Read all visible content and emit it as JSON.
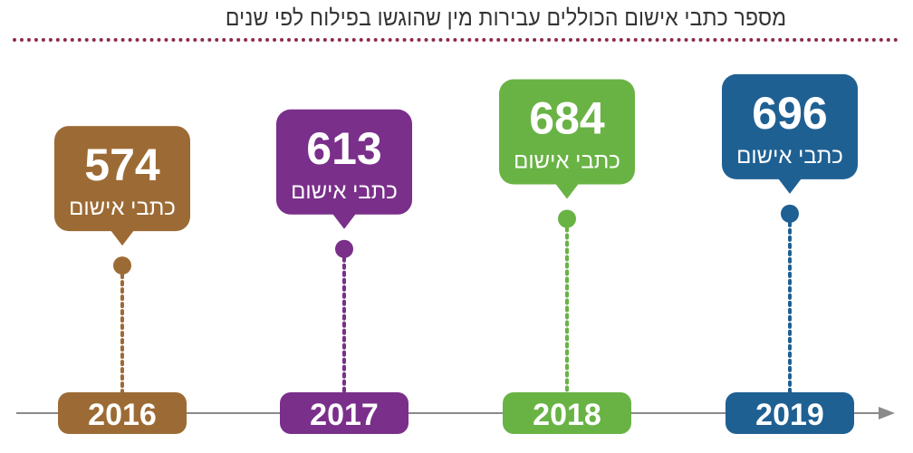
{
  "chart_data": {
    "type": "bar",
    "title": "מספר כתבי אישום הכוללים עבירות מין שהוגשו בפילוח לפי שנים",
    "categories": [
      "2016",
      "2017",
      "2018",
      "2019"
    ],
    "values": [
      574,
      613,
      684,
      696
    ],
    "unit_label": "כתבי אישום",
    "colors": [
      "#9c6b35",
      "#7a2f8a",
      "#69b345",
      "#1f6093"
    ],
    "ylim": [
      0,
      700
    ]
  }
}
